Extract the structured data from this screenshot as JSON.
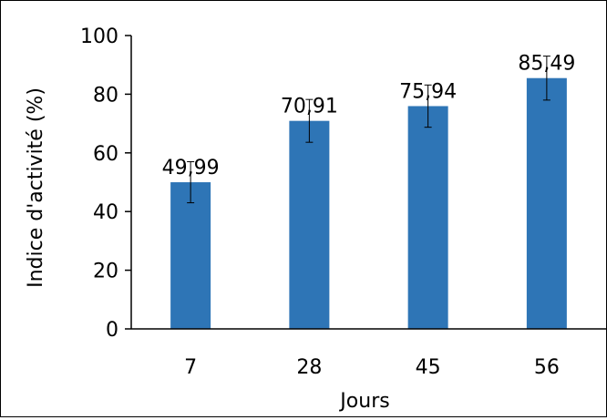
{
  "colors": {
    "bar": "#2E75B6",
    "axis": "#000000",
    "text": "#000000"
  },
  "chart_data": {
    "type": "bar",
    "title": "",
    "xlabel": "Jours",
    "ylabel": "Indice d'activité (%)",
    "categories": [
      "7",
      "28",
      "45",
      "56"
    ],
    "values": [
      49.99,
      70.91,
      75.94,
      85.49
    ],
    "data_labels": [
      "49,99",
      "70,91",
      "75,94",
      "85,49"
    ],
    "error": [
      7,
      7.3,
      7.2,
      7.5
    ],
    "ylim": [
      0,
      100
    ],
    "yticks": [
      0,
      20,
      40,
      60,
      80,
      100
    ],
    "grid": false,
    "legend": "none"
  }
}
